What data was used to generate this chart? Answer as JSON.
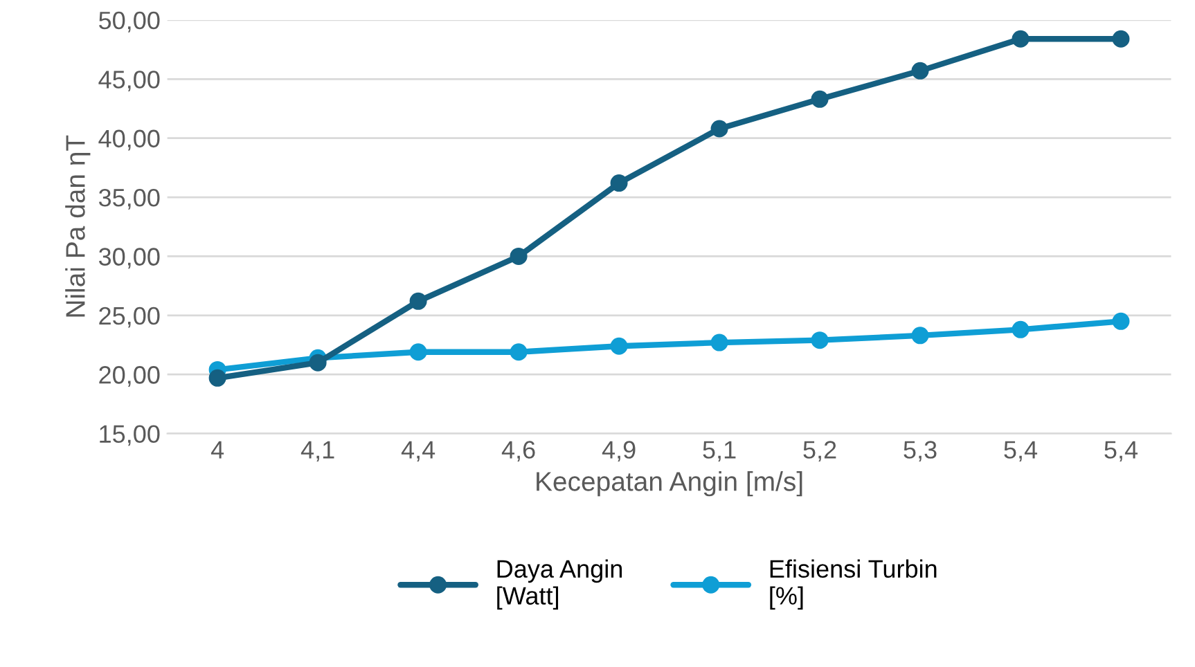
{
  "chart_data": {
    "type": "line",
    "xlabel": "Kecepatan Angin [m/s]",
    "ylabel": "Nilai Pa dan ηT",
    "categories": [
      "4",
      "4,1",
      "4,4",
      "4,6",
      "4,9",
      "5,1",
      "5,2",
      "5,3",
      "5,4",
      "5,4"
    ],
    "series": [
      {
        "name": "Daya Angin\n[Watt]",
        "color": "#156082",
        "values": [
          19.7,
          21.0,
          26.2,
          30.0,
          36.2,
          40.8,
          43.3,
          45.7,
          48.4,
          48.4
        ]
      },
      {
        "name": "Efisiensi Turbin\n[%]",
        "color": "#0f9ed5",
        "values": [
          20.4,
          21.4,
          21.9,
          21.9,
          22.4,
          22.7,
          22.9,
          23.3,
          23.8,
          24.5
        ]
      }
    ],
    "ylim": [
      15,
      50
    ],
    "yticks": [
      {
        "value": 15,
        "label": "15,00"
      },
      {
        "value": 20,
        "label": "20,00"
      },
      {
        "value": 25,
        "label": "25,00"
      },
      {
        "value": 30,
        "label": "30,00"
      },
      {
        "value": 35,
        "label": "35,00"
      },
      {
        "value": 40,
        "label": "40,00"
      },
      {
        "value": 45,
        "label": "45,00"
      },
      {
        "value": 50,
        "label": "50,00"
      }
    ],
    "grid": "y",
    "legend": "bottom",
    "marker": "circle",
    "line_style": "solid"
  }
}
